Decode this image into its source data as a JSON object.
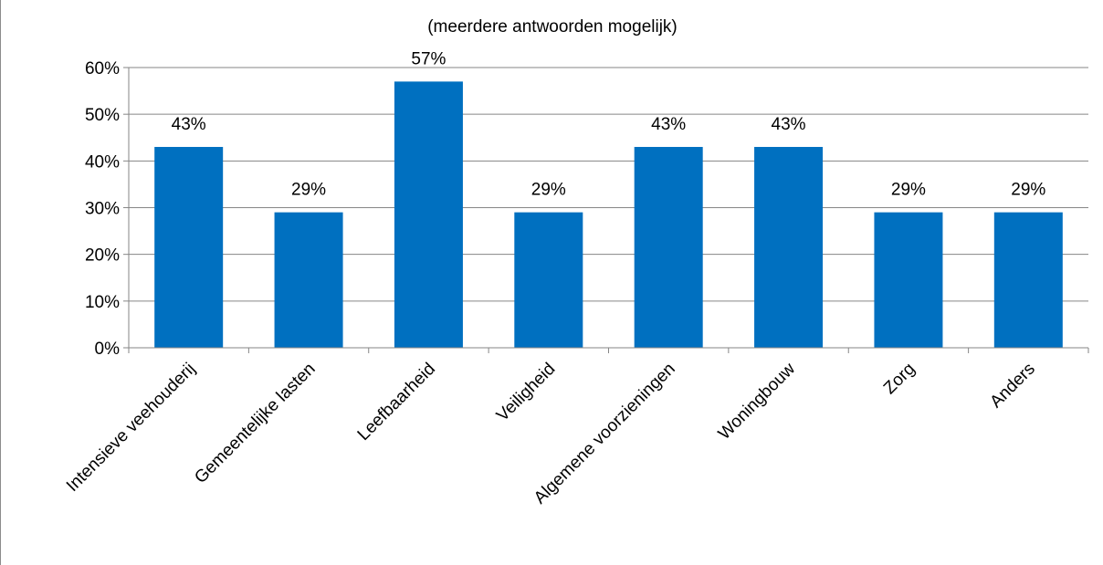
{
  "chart_data": {
    "type": "bar",
    "title": "",
    "subtitle": "(meerdere antwoorden mogelijk)",
    "categories": [
      "Intensieve veehouderij",
      "Gemeentelijke lasten",
      "Leefbaarheid",
      "Veiligheid",
      "Algemene voorzieningen",
      "Woningbouw",
      "Zorg",
      "Anders"
    ],
    "values": [
      43,
      29,
      57,
      29,
      43,
      43,
      29,
      29
    ],
    "data_labels": [
      "43%",
      "29%",
      "57%",
      "29%",
      "43%",
      "43%",
      "29%",
      "29%"
    ],
    "yticks": [
      0,
      10,
      20,
      30,
      40,
      50,
      60
    ],
    "ytick_labels": [
      "0%",
      "10%",
      "20%",
      "30%",
      "40%",
      "50%",
      "60%"
    ],
    "ylim": [
      0,
      60
    ],
    "xlabel": "",
    "ylabel": "",
    "grid": true,
    "legend": "none",
    "colors": {
      "bar": "#0070c0",
      "grid": "#868686",
      "axis": "#868686"
    }
  }
}
